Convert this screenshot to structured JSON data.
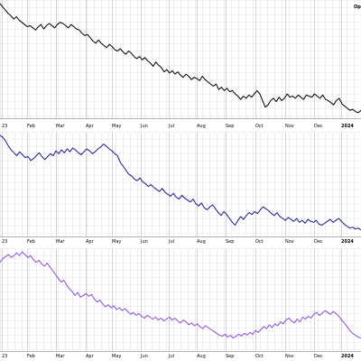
{
  "corner_label": "Op",
  "chart_data": [
    {
      "type": "line",
      "x_ticks": [
        "23",
        "Feb",
        "Mar",
        "Apr",
        "May",
        "Jun",
        "Jul",
        "Aug",
        "Sep",
        "Oct",
        "Nov",
        "Dec",
        "2024"
      ],
      "x_tick_bold": [
        "2024"
      ],
      "grid": true,
      "series": [
        {
          "color": "#000000",
          "values": [
            100,
            97,
            94,
            91,
            89,
            86,
            88,
            85,
            83,
            81,
            79,
            80,
            78,
            76,
            79,
            81,
            77,
            80,
            82,
            80,
            78,
            81,
            83,
            82,
            80,
            78,
            81,
            79,
            77,
            76,
            73,
            71,
            72,
            69,
            66,
            64,
            67,
            64,
            62,
            60,
            63,
            61,
            58,
            57,
            59,
            56,
            54,
            57,
            55,
            52,
            50,
            52,
            49,
            51,
            48,
            46,
            43,
            47,
            44,
            42,
            38,
            40,
            37,
            39,
            36,
            38,
            35,
            33,
            36,
            34,
            31,
            33,
            32,
            30,
            34,
            31,
            29,
            27,
            25,
            27,
            22,
            24,
            21,
            23,
            20,
            21,
            18,
            16,
            13,
            16,
            14,
            17,
            15,
            18,
            21,
            18,
            12,
            6,
            8,
            12,
            14,
            11,
            15,
            12,
            14,
            18,
            15,
            16,
            14,
            17,
            15,
            13,
            17,
            16,
            15,
            18,
            16,
            14,
            17,
            13,
            12,
            10,
            8,
            12,
            14,
            9,
            7,
            5,
            3,
            4,
            2,
            1,
            3
          ]
        }
      ]
    },
    {
      "type": "line",
      "x_ticks": [
        "23",
        "Feb",
        "Mar",
        "Apr",
        "May",
        "Jun",
        "Jul",
        "Aug",
        "Sep",
        "Oct",
        "Nov",
        "Dec",
        "2024"
      ],
      "x_tick_bold": [
        "2024"
      ],
      "grid": true,
      "series": [
        {
          "color": "#1a1a8c",
          "values": [
            100,
            98,
            94,
            89,
            85,
            82,
            79,
            83,
            80,
            77,
            78,
            74,
            76,
            79,
            82,
            78,
            75,
            78,
            81,
            79,
            84,
            81,
            85,
            82,
            86,
            83,
            87,
            85,
            82,
            80,
            83,
            86,
            84,
            81,
            83,
            86,
            88,
            91,
            89,
            86,
            84,
            81,
            79,
            72,
            68,
            64,
            60,
            58,
            55,
            53,
            56,
            52,
            50,
            47,
            49,
            46,
            44,
            42,
            45,
            41,
            39,
            37,
            40,
            36,
            34,
            38,
            35,
            33,
            31,
            34,
            29,
            27,
            30,
            25,
            23,
            26,
            28,
            24,
            20,
            17,
            21,
            18,
            14,
            10,
            7,
            12,
            16,
            13,
            17,
            20,
            18,
            21,
            19,
            23,
            26,
            24,
            22,
            19,
            17,
            20,
            16,
            14,
            12,
            15,
            13,
            11,
            14,
            10,
            12,
            9,
            13,
            11,
            10,
            12,
            8,
            7,
            9,
            11,
            13,
            10,
            12,
            14,
            11,
            8,
            6,
            4,
            5,
            3,
            4,
            2
          ]
        }
      ]
    },
    {
      "type": "line",
      "x_ticks": [
        "23",
        "Feb",
        "Mar",
        "Apr",
        "May",
        "Jun",
        "Jul",
        "Aug",
        "Sep",
        "Oct",
        "Nov",
        "Dec",
        "2024"
      ],
      "x_tick_bold": [
        "2024"
      ],
      "grid": true,
      "series": [
        {
          "color": "#8a4fd1",
          "values": [
            89,
            93,
            95,
            97,
            94,
            96,
            99,
            96,
            100,
            97,
            94,
            96,
            92,
            89,
            91,
            87,
            85,
            88,
            84,
            80,
            76,
            72,
            68,
            70,
            65,
            61,
            58,
            54,
            57,
            52,
            54,
            56,
            53,
            55,
            50,
            47,
            49,
            45,
            42,
            44,
            41,
            43,
            39,
            41,
            38,
            40,
            37,
            34,
            36,
            33,
            35,
            32,
            30,
            33,
            31,
            29,
            31,
            28,
            30,
            27,
            29,
            31,
            28,
            30,
            27,
            25,
            28,
            26,
            23,
            25,
            22,
            24,
            21,
            19,
            22,
            20,
            18,
            16,
            14,
            12,
            11,
            13,
            10,
            12,
            9,
            11,
            13,
            11,
            14,
            12,
            15,
            13,
            17,
            15,
            18,
            21,
            19,
            23,
            20,
            24,
            22,
            26,
            24,
            28,
            30,
            27,
            25,
            29,
            26,
            31,
            29,
            32,
            30,
            34,
            36,
            33,
            35,
            38,
            36,
            34,
            37,
            35,
            32,
            28,
            25,
            21,
            17,
            14,
            12,
            10,
            9
          ]
        }
      ]
    }
  ]
}
